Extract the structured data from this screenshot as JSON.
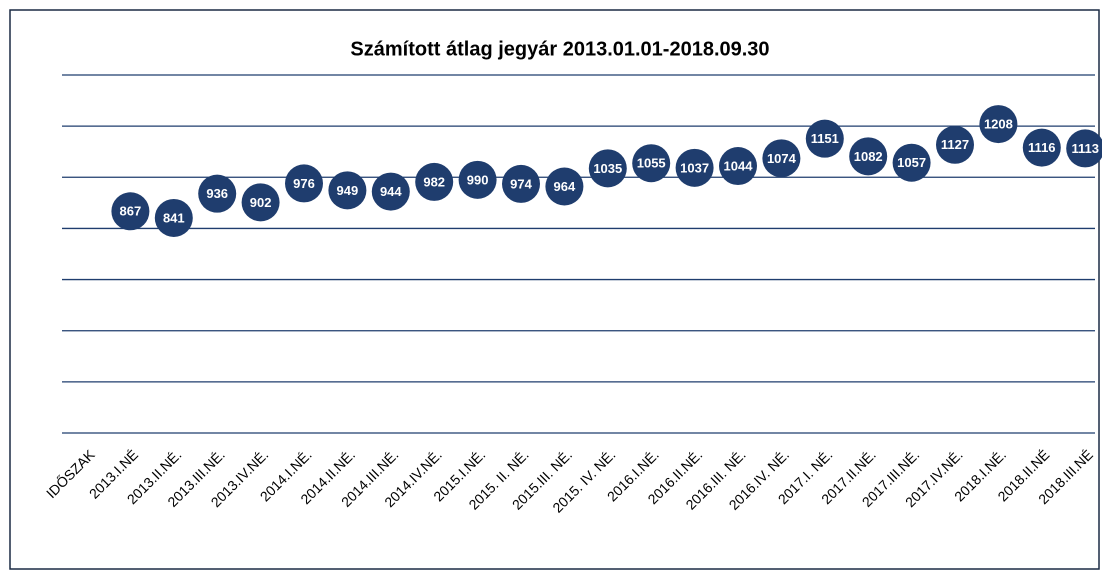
{
  "chart_data": {
    "type": "scatter",
    "title": "Számított átlag jegyár 2013.01.01-2018.09.30",
    "categories": [
      "IDŐSZAK",
      "2013.I.NÉ",
      "2013.II.NÉ.",
      "2013.III.NÉ.",
      "2013.IV.NÉ.",
      "2014.I.NÉ.",
      "2014.II.NÉ.",
      "2014.III.NÉ.",
      "2014.IV.NÉ.",
      "2015.I.NÉ.",
      "2015. II. NÉ.",
      "2015.III. NÉ.",
      "2015. IV. NÉ.",
      "2016.I.NÉ.",
      "2016.II.NÉ.",
      "2016.III. NÉ.",
      "2016.IV. NÉ.",
      "2017.I. NÉ.",
      "2017.II.NÉ.",
      "2017.III.NÉ.",
      "2017.IV.NÉ.",
      "2018.I.NÉ.",
      "2018.II.NÉ",
      "2018.III.NÉ"
    ],
    "values": [
      null,
      867,
      841,
      936,
      902,
      976,
      949,
      944,
      982,
      990,
      974,
      964,
      1035,
      1055,
      1037,
      1044,
      1074,
      1151,
      1082,
      1057,
      1127,
      1208,
      1116,
      1113
    ],
    "color": "#1f3d6e",
    "ylim": [
      0,
      1400
    ],
    "yticks": [
      0,
      200,
      400,
      600,
      800,
      1000,
      1200,
      1400
    ],
    "grid": true
  }
}
